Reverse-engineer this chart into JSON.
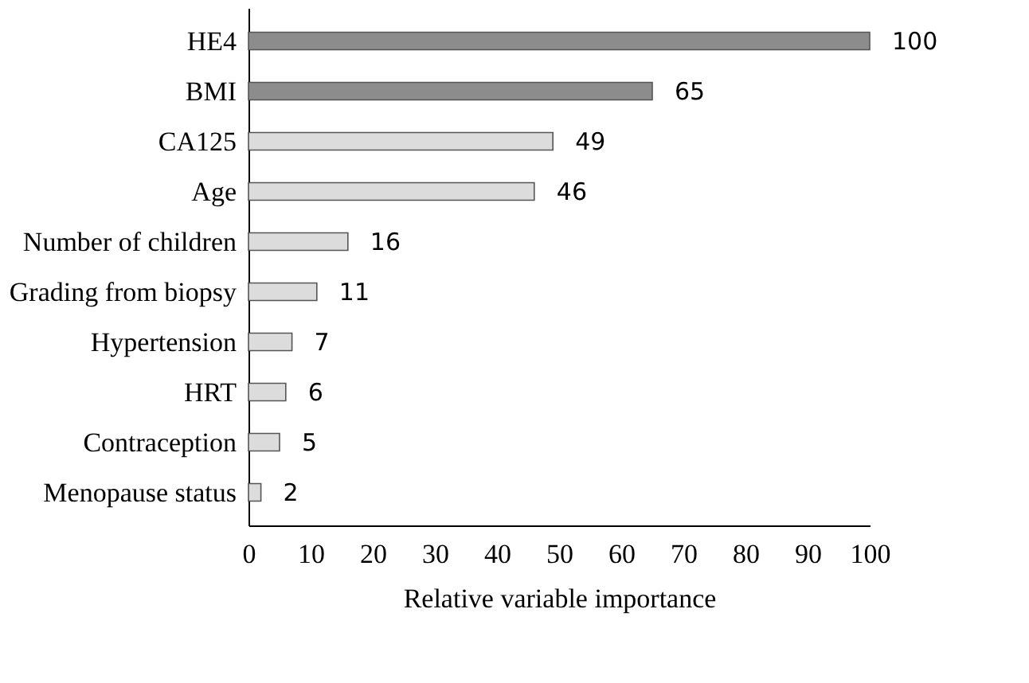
{
  "chart_data": {
    "type": "bar",
    "orientation": "horizontal",
    "xlabel": "Relative variable importance",
    "categories": [
      "HE4",
      "BMI",
      "CA125",
      "Age",
      "Number of children",
      "Grading from biopsy",
      "Hypertension",
      "HRT",
      "Contraception",
      "Menopause status"
    ],
    "values": [
      100,
      65,
      49,
      46,
      16,
      11,
      7,
      6,
      5,
      2
    ],
    "colors": [
      "#8c8c8c",
      "#8c8c8c",
      "#dcdcdc",
      "#dcdcdc",
      "#dcdcdc",
      "#dcdcdc",
      "#dcdcdc",
      "#dcdcdc",
      "#dcdcdc",
      "#dcdcdc"
    ],
    "xlim": [
      0,
      100
    ],
    "xticks": [
      0,
      10,
      20,
      30,
      40,
      50,
      60,
      70,
      80,
      90,
      100
    ],
    "data_labels": true,
    "grid": false
  }
}
